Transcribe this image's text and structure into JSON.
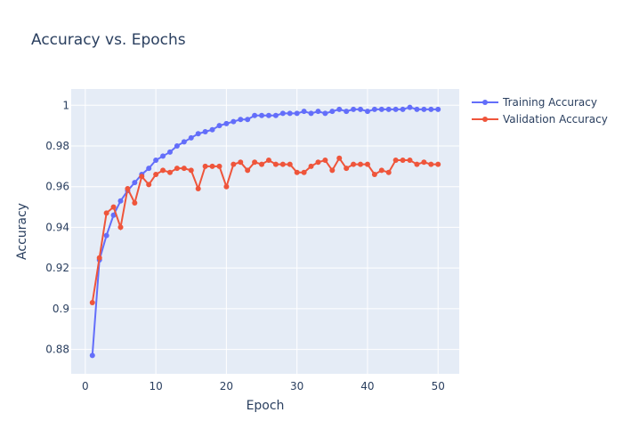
{
  "chart_data": {
    "type": "line",
    "title": "Accuracy vs. Epochs",
    "xlabel": "Epoch",
    "ylabel": "Accuracy",
    "xlim": [
      -2,
      53
    ],
    "ylim": [
      0.868,
      1.008
    ],
    "x_ticks": [
      0,
      10,
      20,
      30,
      40,
      50
    ],
    "y_ticks": [
      0.88,
      0.9,
      0.92,
      0.94,
      0.96,
      0.98,
      1
    ],
    "y_tick_labels": [
      "0.88",
      "0.9",
      "0.92",
      "0.94",
      "0.96",
      "0.98",
      "1"
    ],
    "grid": true,
    "legend_position": "top-right",
    "x": [
      1,
      2,
      3,
      4,
      5,
      6,
      7,
      8,
      9,
      10,
      11,
      12,
      13,
      14,
      15,
      16,
      17,
      18,
      19,
      20,
      21,
      22,
      23,
      24,
      25,
      26,
      27,
      28,
      29,
      30,
      31,
      32,
      33,
      34,
      35,
      36,
      37,
      38,
      39,
      40,
      41,
      42,
      43,
      44,
      45,
      46,
      47,
      48,
      49,
      50
    ],
    "series": [
      {
        "name": "Training Accuracy",
        "color": "#636efa",
        "values": [
          0.877,
          0.924,
          0.936,
          0.946,
          0.953,
          0.958,
          0.962,
          0.966,
          0.969,
          0.973,
          0.975,
          0.977,
          0.98,
          0.982,
          0.984,
          0.986,
          0.987,
          0.988,
          0.99,
          0.991,
          0.992,
          0.993,
          0.993,
          0.995,
          0.995,
          0.995,
          0.995,
          0.996,
          0.996,
          0.996,
          0.997,
          0.996,
          0.997,
          0.996,
          0.997,
          0.998,
          0.997,
          0.998,
          0.998,
          0.997,
          0.998,
          0.998,
          0.998,
          0.998,
          0.998,
          0.999,
          0.998,
          0.998,
          0.998,
          0.998
        ]
      },
      {
        "name": "Validation Accuracy",
        "color": "#ef553b",
        "values": [
          0.903,
          0.925,
          0.947,
          0.95,
          0.94,
          0.959,
          0.952,
          0.965,
          0.961,
          0.966,
          0.968,
          0.967,
          0.969,
          0.969,
          0.968,
          0.959,
          0.97,
          0.97,
          0.97,
          0.96,
          0.971,
          0.972,
          0.968,
          0.972,
          0.971,
          0.973,
          0.971,
          0.971,
          0.971,
          0.967,
          0.967,
          0.97,
          0.972,
          0.973,
          0.968,
          0.974,
          0.969,
          0.971,
          0.971,
          0.971,
          0.966,
          0.968,
          0.967,
          0.973,
          0.973,
          0.973,
          0.971,
          0.972,
          0.971,
          0.971
        ]
      }
    ]
  }
}
